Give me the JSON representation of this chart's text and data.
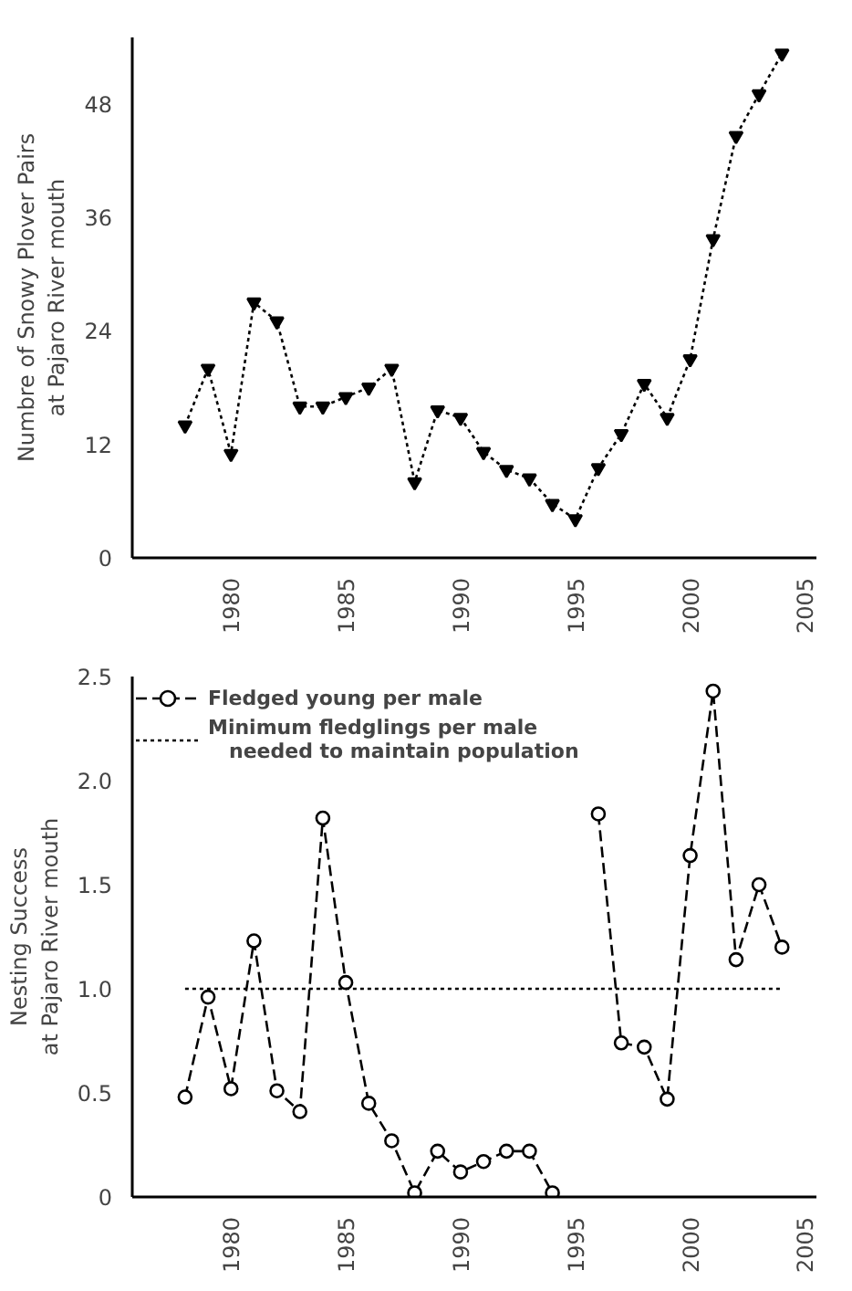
{
  "chart_data": [
    {
      "type": "line",
      "ylabel": "Numbre of Snowy Plover Pairs\nat Pajaro River mouth",
      "x": [
        1978,
        1979,
        1980,
        1981,
        1982,
        1983,
        1984,
        1985,
        1986,
        1987,
        1988,
        1989,
        1990,
        1991,
        1992,
        1993,
        1994,
        1995,
        1996,
        1997,
        1998,
        1999,
        2000,
        2001,
        2002,
        2003,
        2004
      ],
      "series": [
        {
          "color": "#000000",
          "values": [
            14,
            20,
            11,
            27,
            25,
            16,
            16,
            17,
            18,
            20,
            8,
            15.6,
            14.8,
            11.2,
            9.3,
            8.4,
            5.7,
            4.1,
            9.5,
            13.1,
            18.4,
            14.8,
            21,
            33.7,
            44.6,
            49,
            53.3
          ],
          "marker": "triangle",
          "line_style": "dotted"
        }
      ],
      "xlim": [
        1975.7,
        2005.5
      ],
      "ylim": [
        0,
        55
      ],
      "xticks": [
        1980,
        1985,
        1990,
        1995,
        2000,
        2005
      ],
      "yticks": [
        0,
        12,
        24,
        36,
        48
      ],
      "grid": false,
      "legend": false
    },
    {
      "type": "line",
      "ylabel": "Nesting Success\nat Pajaro River mouth",
      "x": [
        1978,
        1979,
        1980,
        1981,
        1982,
        1983,
        1984,
        1985,
        1986,
        1987,
        1988,
        1989,
        1990,
        1991,
        1992,
        1993,
        1994,
        1995,
        1996,
        1997,
        1998,
        1999,
        2000,
        2001,
        2002,
        2003,
        2004
      ],
      "series": [
        {
          "name": "Fledged young per male",
          "color": "#000000",
          "values": [
            0.48,
            0.96,
            0.52,
            1.23,
            0.51,
            0.41,
            1.82,
            1.03,
            0.45,
            0.27,
            0.02,
            0.22,
            0.12,
            0.17,
            0.22,
            0.22,
            0.02,
            null,
            1.84,
            0.74,
            0.72,
            0.47,
            1.64,
            2.43,
            1.14,
            1.5,
            1.2
          ],
          "marker": "circle",
          "line_style": "dashed"
        },
        {
          "name": "Minimum fledglings per male\n   needed to maintain population",
          "color": "#000000",
          "x": [
            1978,
            2004
          ],
          "values": [
            1.0,
            1.0
          ],
          "marker": "none",
          "line_style": "dotted"
        }
      ],
      "xlim": [
        1975.7,
        2005.5
      ],
      "ylim": [
        0,
        2.5
      ],
      "xticks": [
        1980,
        1985,
        1990,
        1995,
        2000,
        2005
      ],
      "yticks": [
        0,
        0.5,
        {
          "value": 1,
          "label": "1.0"
        },
        1.5,
        {
          "value": 2,
          "label": "2.0"
        },
        2.5
      ],
      "grid": false,
      "legend": "top left"
    }
  ]
}
